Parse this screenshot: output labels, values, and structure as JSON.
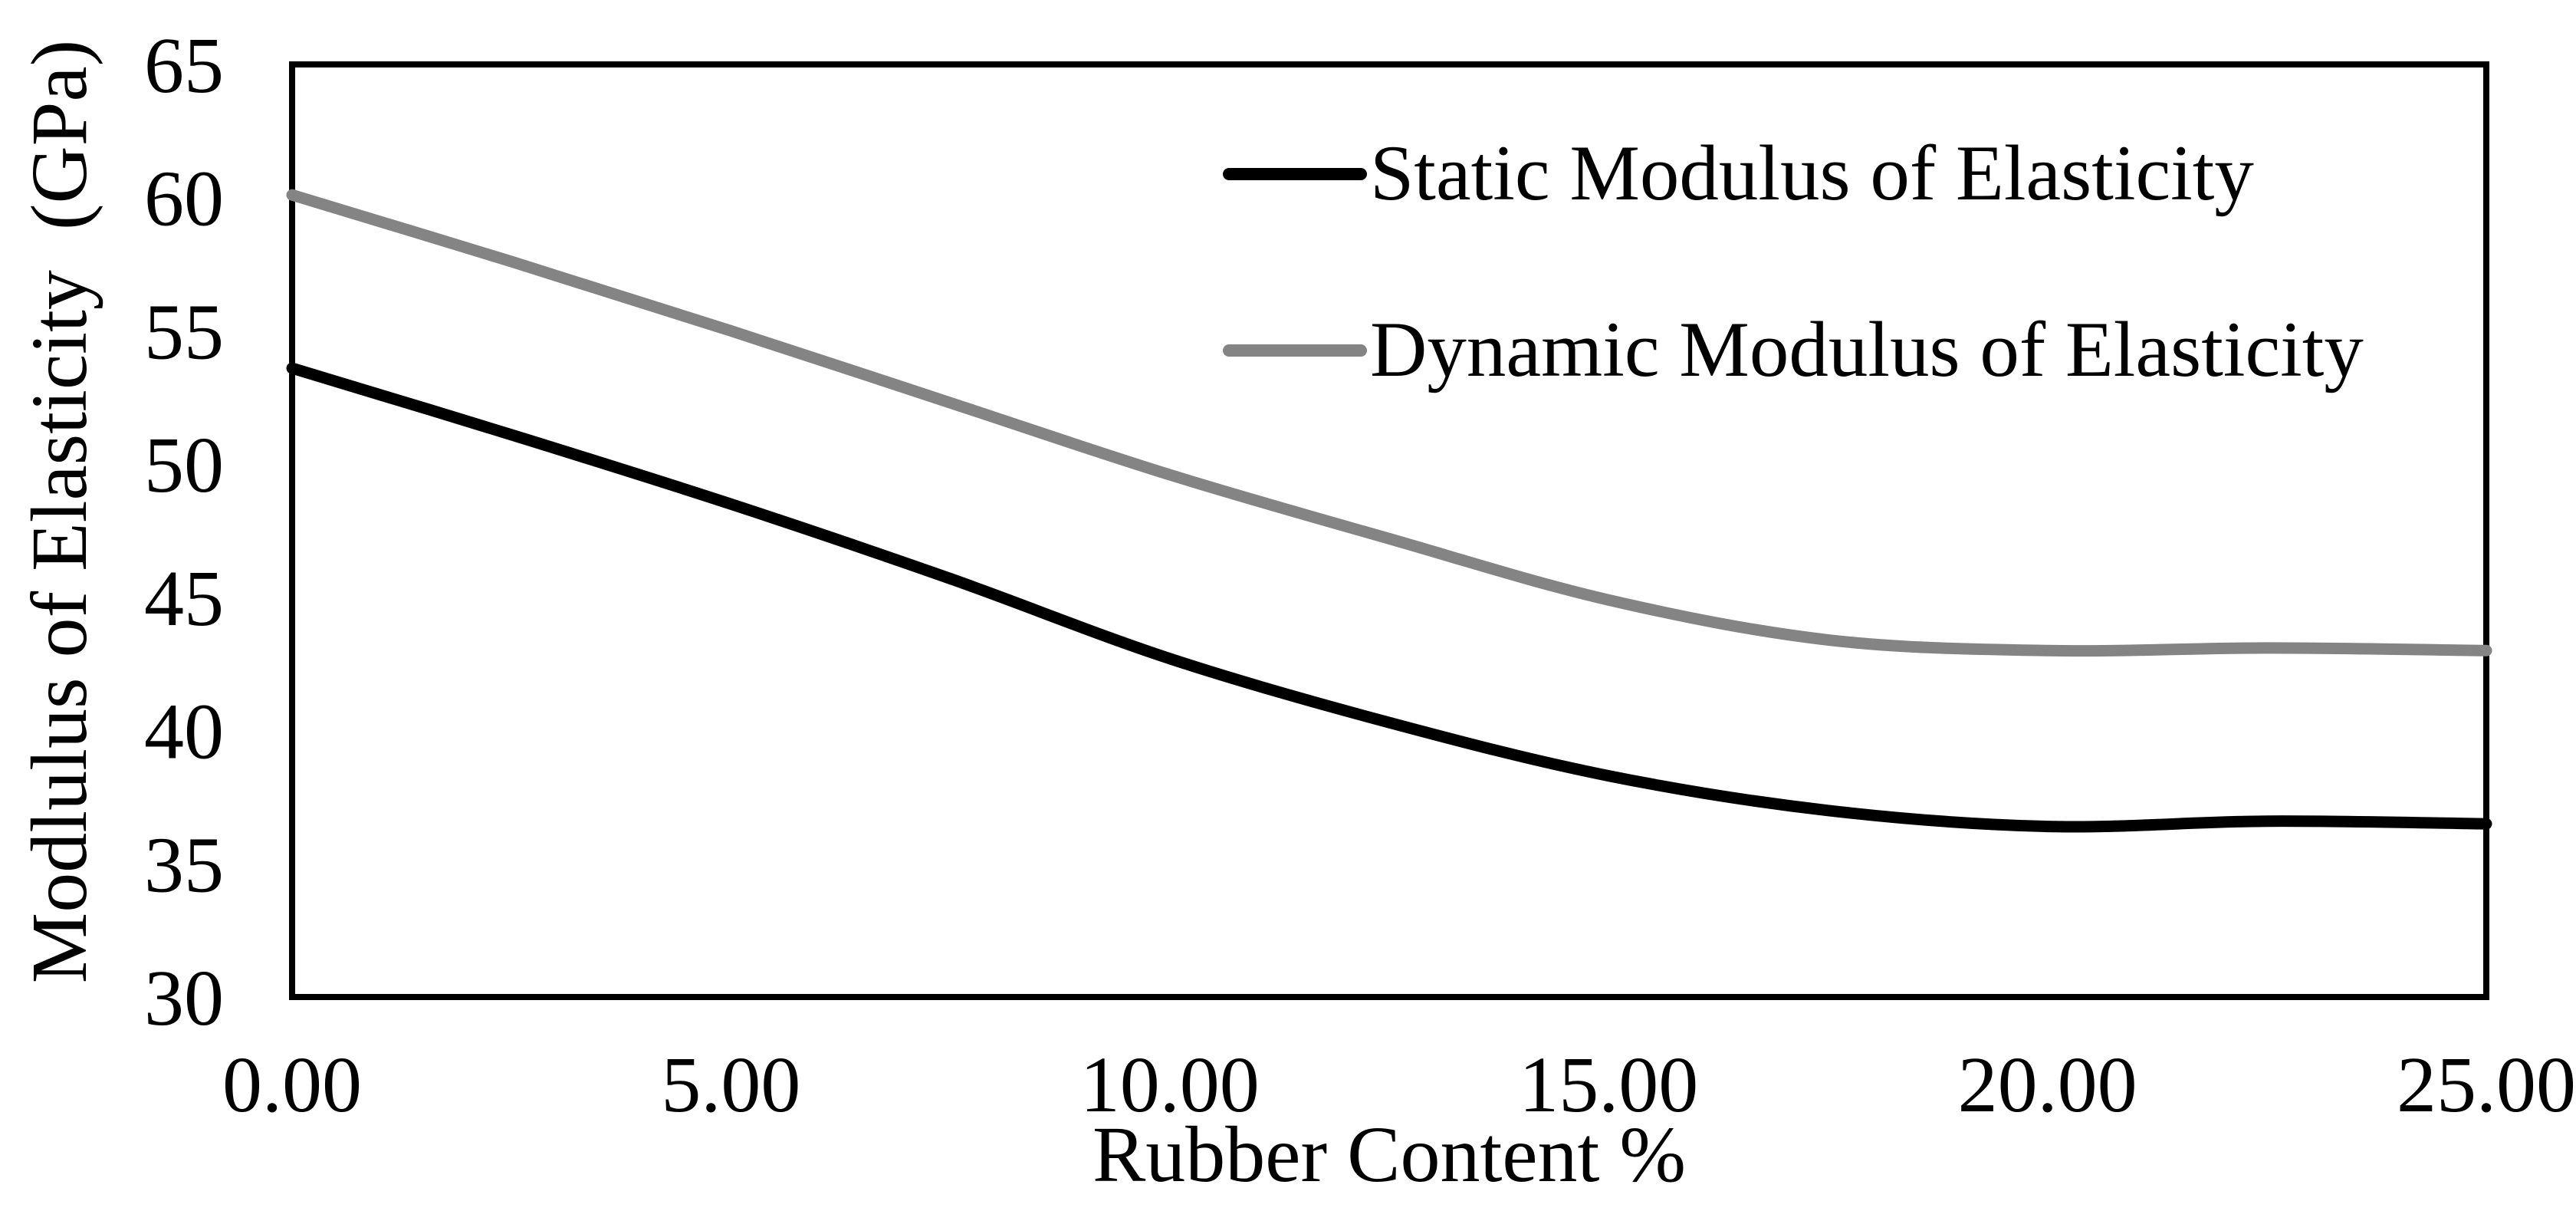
{
  "chart_data": {
    "type": "line",
    "title": "",
    "xlabel": "Rubber Content %",
    "ylabel": "Modlulus of Elasticity  (GPa)",
    "xlim": [
      0,
      25
    ],
    "ylim": [
      30,
      65
    ],
    "grid": "off",
    "legend_position": "inside-top-right",
    "x_ticks": [
      0,
      5,
      10,
      15,
      20,
      25
    ],
    "x_tick_labels": [
      "0.00",
      "5.00",
      "10.00",
      "15.00",
      "20.00",
      "25.00"
    ],
    "y_ticks": [
      30,
      35,
      40,
      45,
      50,
      55,
      60,
      65
    ],
    "y_tick_labels": [
      "30",
      "35",
      "40",
      "45",
      "50",
      "55",
      "60",
      "65"
    ],
    "x": [
      0,
      2.5,
      5,
      7.5,
      10,
      12.5,
      15,
      17.5,
      20,
      22.5,
      25
    ],
    "series": [
      {
        "name": "Static Modulus of Elasticity",
        "color": "#000000",
        "values": [
          53.6,
          51.1,
          48.5,
          45.7,
          42.7,
          40.3,
          38.3,
          37.0,
          36.4,
          36.6,
          36.5
        ]
      },
      {
        "name": "Dynamic Modulus of Elasticity",
        "color": "#848484",
        "values": [
          60.1,
          57.6,
          55.0,
          52.3,
          49.6,
          47.2,
          44.9,
          43.4,
          43.0,
          43.1,
          43.0
        ]
      }
    ],
    "axis_color": "#000000",
    "background_color": "#ffffff"
  }
}
